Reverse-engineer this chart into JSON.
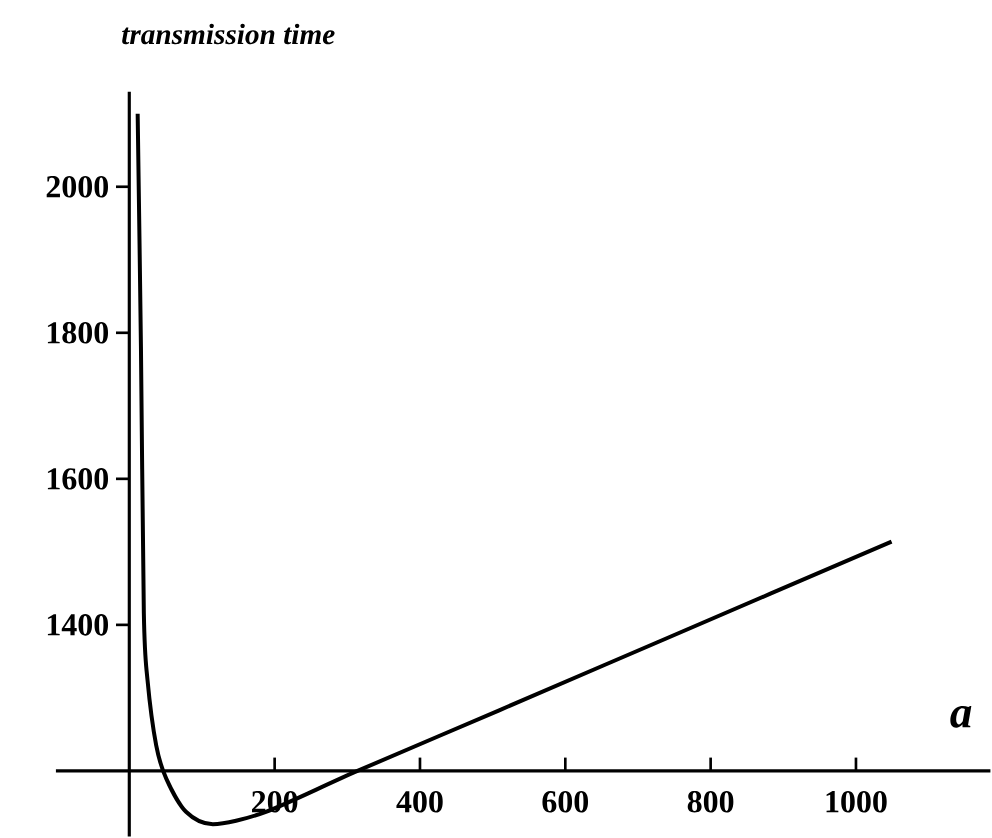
{
  "chart_data": {
    "type": "line",
    "title": "transmission time",
    "xlabel": "a",
    "x": [
      11.5,
      16,
      20,
      25,
      37,
      51,
      78,
      115,
      188,
      314,
      509,
      738,
      1049
    ],
    "values": [
      2100,
      1781,
      1416,
      1325,
      1235,
      1189,
      1144,
      1127,
      1144,
      1200,
      1283,
      1381,
      1514
    ],
    "color": "#000000",
    "xlim": [
      -101,
      1185
    ],
    "ylim": [
      1110,
      2130
    ],
    "xticks": [
      200,
      400,
      600,
      800,
      1000
    ],
    "yticks": [
      1400,
      1600,
      1800,
      2000
    ],
    "marker": "none",
    "line_style": "solid"
  }
}
